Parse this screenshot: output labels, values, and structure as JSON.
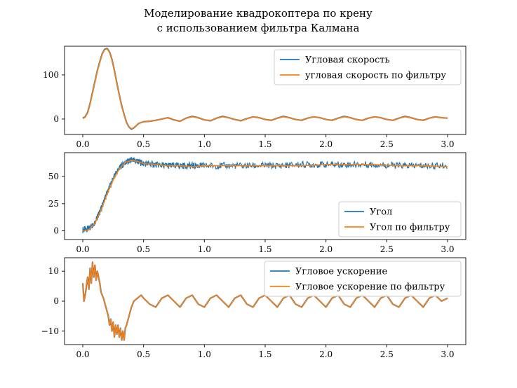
{
  "figure": {
    "title_line1": "Моделирование квадрокоптера по крену",
    "title_line2": "с использованием фильтра Калмана"
  },
  "colors": {
    "raw": "#1f77b4",
    "filtered": "#ff7f0e",
    "frame": "#000000"
  },
  "chart_data": [
    {
      "type": "line",
      "xlim": [
        -0.15,
        3.15
      ],
      "ylim": [
        -35,
        165
      ],
      "xticks": [
        0.0,
        0.5,
        1.0,
        1.5,
        2.0,
        2.5,
        3.0
      ],
      "xtick_labels": [
        "0.0",
        "0.5",
        "1.0",
        "1.5",
        "2.0",
        "2.5",
        "3.0"
      ],
      "yticks": [
        0,
        100
      ],
      "ytick_labels": [
        "0",
        "100"
      ],
      "legend_position": "upper-right",
      "series": [
        {
          "name": "Угловая скорость",
          "role": "raw",
          "x": [
            0.0,
            0.02,
            0.04,
            0.06,
            0.08,
            0.1,
            0.12,
            0.14,
            0.16,
            0.18,
            0.2,
            0.22,
            0.24,
            0.26,
            0.28,
            0.3,
            0.32,
            0.34,
            0.36,
            0.38,
            0.4,
            0.42,
            0.44,
            0.46,
            0.48,
            0.5,
            0.55,
            0.6,
            0.65,
            0.7,
            0.75,
            0.8,
            0.85,
            0.9,
            0.95,
            1.0,
            1.05,
            1.1,
            1.15,
            1.2,
            1.25,
            1.3,
            1.35,
            1.4,
            1.45,
            1.5,
            1.55,
            1.6,
            1.65,
            1.7,
            1.75,
            1.8,
            1.85,
            1.9,
            1.95,
            2.0,
            2.05,
            2.1,
            2.15,
            2.2,
            2.25,
            2.3,
            2.35,
            2.4,
            2.45,
            2.5,
            2.55,
            2.6,
            2.65,
            2.7,
            2.75,
            2.8,
            2.85,
            2.9,
            2.95,
            3.0
          ],
          "y": [
            2,
            5,
            15,
            35,
            60,
            85,
            110,
            130,
            148,
            158,
            160,
            152,
            135,
            110,
            82,
            55,
            30,
            10,
            -8,
            -18,
            -23,
            -20,
            -15,
            -10,
            -8,
            -6,
            -5,
            -3,
            0,
            3,
            -2,
            -5,
            2,
            6,
            3,
            -2,
            -4,
            2,
            6,
            3,
            -1,
            -4,
            1,
            5,
            3,
            -1,
            -3,
            2,
            6,
            3,
            -1,
            -3,
            2,
            5,
            3,
            -1,
            -3,
            2,
            6,
            3,
            -1,
            -3,
            2,
            5,
            3,
            -1,
            -3,
            2,
            6,
            3,
            -1,
            -3,
            2,
            5,
            3,
            2
          ]
        },
        {
          "name": "угловая скорость по фильтру",
          "role": "filtered",
          "x": [
            0.0,
            0.02,
            0.04,
            0.06,
            0.08,
            0.1,
            0.12,
            0.14,
            0.16,
            0.18,
            0.2,
            0.22,
            0.24,
            0.26,
            0.28,
            0.3,
            0.32,
            0.34,
            0.36,
            0.38,
            0.4,
            0.42,
            0.44,
            0.46,
            0.48,
            0.5,
            0.55,
            0.6,
            0.65,
            0.7,
            0.75,
            0.8,
            0.85,
            0.9,
            0.95,
            1.0,
            1.05,
            1.1,
            1.15,
            1.2,
            1.25,
            1.3,
            1.35,
            1.4,
            1.45,
            1.5,
            1.55,
            1.6,
            1.65,
            1.7,
            1.75,
            1.8,
            1.85,
            1.9,
            1.95,
            2.0,
            2.05,
            2.1,
            2.15,
            2.2,
            2.25,
            2.3,
            2.35,
            2.4,
            2.45,
            2.5,
            2.55,
            2.6,
            2.65,
            2.7,
            2.75,
            2.8,
            2.85,
            2.9,
            2.95,
            3.0
          ],
          "y": [
            1,
            4,
            14,
            34,
            59,
            84,
            109,
            129,
            147,
            157,
            159,
            151,
            134,
            109,
            81,
            54,
            29,
            9,
            -8,
            -18,
            -22,
            -20,
            -15,
            -10,
            -8,
            -6,
            -5,
            -3,
            0,
            3,
            -2,
            -5,
            2,
            5,
            3,
            -2,
            -4,
            2,
            5,
            3,
            -1,
            -4,
            1,
            5,
            3,
            -1,
            -3,
            2,
            5,
            3,
            -1,
            -3,
            2,
            5,
            3,
            -1,
            -3,
            2,
            5,
            3,
            -1,
            -3,
            2,
            5,
            3,
            -1,
            -3,
            2,
            5,
            3,
            -1,
            -3,
            2,
            5,
            3,
            2
          ]
        }
      ]
    },
    {
      "type": "line",
      "xlim": [
        -0.15,
        3.15
      ],
      "ylim": [
        -8,
        72
      ],
      "xticks": [
        0.0,
        0.5,
        1.0,
        1.5,
        2.0,
        2.5,
        3.0
      ],
      "xtick_labels": [
        "0.0",
        "0.5",
        "1.0",
        "1.5",
        "2.0",
        "2.5",
        "3.0"
      ],
      "yticks": [
        0,
        25,
        50
      ],
      "ytick_labels": [
        "0",
        "25",
        "50"
      ],
      "legend_position": "lower-right",
      "series": [
        {
          "name": "Угол",
          "role": "raw",
          "band": 3,
          "x": [
            0.0,
            0.05,
            0.1,
            0.15,
            0.2,
            0.25,
            0.3,
            0.35,
            0.4,
            0.45,
            0.5,
            0.6,
            0.7,
            0.8,
            0.9,
            1.0,
            1.2,
            1.4,
            1.6,
            1.8,
            2.0,
            2.2,
            2.4,
            2.6,
            2.8,
            3.0
          ],
          "y": [
            1,
            2,
            8,
            20,
            35,
            48,
            58,
            63,
            65,
            64,
            62,
            61,
            60,
            60,
            60,
            60,
            60,
            60,
            60,
            61,
            61,
            61,
            61,
            60,
            60,
            60
          ]
        },
        {
          "name": "Угол по фильтру",
          "role": "filtered",
          "x": [
            0.0,
            0.05,
            0.1,
            0.15,
            0.2,
            0.25,
            0.3,
            0.35,
            0.4,
            0.45,
            0.5,
            0.6,
            0.7,
            0.8,
            0.9,
            1.0,
            1.2,
            1.4,
            1.6,
            1.8,
            2.0,
            2.2,
            2.4,
            2.6,
            2.8,
            3.0
          ],
          "y": [
            0,
            1,
            7,
            19,
            34,
            47,
            57,
            63,
            65,
            64,
            62,
            61,
            60,
            60,
            59,
            60,
            60,
            60,
            60,
            60,
            61,
            61,
            61,
            60,
            60,
            59
          ]
        }
      ]
    },
    {
      "type": "line",
      "xlim": [
        -0.15,
        3.15
      ],
      "ylim": [
        -14.5,
        14.5
      ],
      "xticks": [
        0.0,
        0.5,
        1.0,
        1.5,
        2.0,
        2.5,
        3.0
      ],
      "xtick_labels": [
        "0.0",
        "0.5",
        "1.0",
        "1.5",
        "2.0",
        "2.5",
        "3.0"
      ],
      "yticks": [
        -10,
        0,
        10
      ],
      "ytick_labels": [
        "−10",
        "0",
        "10"
      ],
      "legend_position": "upper-right",
      "series": [
        {
          "name": "Угловое ускорение",
          "role": "raw",
          "x": [
            0.0,
            0.01,
            0.02,
            0.04,
            0.05,
            0.06,
            0.07,
            0.08,
            0.09,
            0.1,
            0.11,
            0.12,
            0.13,
            0.14,
            0.15,
            0.17,
            0.19,
            0.21,
            0.22,
            0.23,
            0.24,
            0.25,
            0.26,
            0.27,
            0.28,
            0.29,
            0.3,
            0.31,
            0.32,
            0.33,
            0.34,
            0.35,
            0.36,
            0.38,
            0.4,
            0.42,
            0.45,
            0.48,
            0.5,
            0.55,
            0.6,
            0.65,
            0.7,
            0.75,
            0.8,
            0.85,
            0.9,
            0.95,
            1.0,
            1.05,
            1.1,
            1.15,
            1.2,
            1.25,
            1.3,
            1.35,
            1.4,
            1.45,
            1.5,
            1.55,
            1.6,
            1.65,
            1.7,
            1.75,
            1.8,
            1.85,
            1.9,
            1.95,
            2.0,
            2.05,
            2.1,
            2.15,
            2.2,
            2.25,
            2.3,
            2.35,
            2.4,
            2.45,
            2.5,
            2.55,
            2.6,
            2.65,
            2.7,
            2.75,
            2.8,
            2.85,
            2.9,
            2.95,
            3.0
          ],
          "y": [
            6,
            0,
            2,
            8,
            4,
            11,
            6,
            13,
            8,
            12,
            7,
            10,
            8,
            6,
            3,
            1,
            -2,
            -5,
            -8,
            -6,
            -10,
            -7,
            -12,
            -8,
            -11,
            -8,
            -12,
            -9,
            -13,
            -10,
            -13,
            -9,
            -8,
            -5,
            -2,
            0,
            1,
            2,
            1,
            -1,
            -2,
            1,
            2,
            0,
            -2,
            1,
            2,
            -1,
            -2,
            1,
            2,
            0,
            -2,
            1,
            2,
            -1,
            -2,
            1,
            2,
            0,
            -2,
            1,
            2,
            -1,
            -2,
            1,
            2,
            0,
            -2,
            1,
            2,
            -1,
            -2,
            1,
            2,
            0,
            -2,
            1,
            2,
            -1,
            -2,
            1,
            2,
            0,
            -2,
            1,
            2,
            0,
            1
          ]
        },
        {
          "name": "Угловое ускорение по фильтру",
          "role": "filtered",
          "x": [
            0.0,
            0.01,
            0.02,
            0.04,
            0.05,
            0.06,
            0.07,
            0.08,
            0.09,
            0.1,
            0.11,
            0.12,
            0.13,
            0.14,
            0.15,
            0.17,
            0.19,
            0.21,
            0.22,
            0.23,
            0.24,
            0.25,
            0.26,
            0.27,
            0.28,
            0.29,
            0.3,
            0.31,
            0.32,
            0.33,
            0.34,
            0.35,
            0.36,
            0.38,
            0.4,
            0.42,
            0.45,
            0.48,
            0.5,
            0.55,
            0.6,
            0.65,
            0.7,
            0.75,
            0.8,
            0.85,
            0.9,
            0.95,
            1.0,
            1.05,
            1.1,
            1.15,
            1.2,
            1.25,
            1.3,
            1.35,
            1.4,
            1.45,
            1.5,
            1.55,
            1.6,
            1.65,
            1.7,
            1.75,
            1.8,
            1.85,
            1.9,
            1.95,
            2.0,
            2.05,
            2.1,
            2.15,
            2.2,
            2.25,
            2.3,
            2.35,
            2.4,
            2.45,
            2.5,
            2.55,
            2.6,
            2.65,
            2.7,
            2.75,
            2.8,
            2.85,
            2.9,
            2.95,
            3.0
          ],
          "y": [
            6,
            0,
            2,
            8,
            4,
            11,
            6,
            13,
            8,
            12,
            7,
            10,
            8,
            6,
            3,
            1,
            -2,
            -5,
            -8,
            -6,
            -10,
            -7,
            -12,
            -8,
            -11,
            -8,
            -12,
            -9,
            -13,
            -10,
            -13,
            -9,
            -8,
            -5,
            -2,
            0,
            1,
            2,
            1,
            -1,
            -2,
            1,
            2,
            0,
            -2,
            1,
            2,
            -1,
            -2,
            1,
            2,
            0,
            -2,
            1,
            2,
            -1,
            -2,
            1,
            2,
            0,
            -2,
            1,
            2,
            -1,
            -2,
            1,
            2,
            0,
            -2,
            1,
            2,
            -1,
            -2,
            1,
            2,
            0,
            -2,
            1,
            2,
            -1,
            -2,
            1,
            2,
            0,
            -2,
            1,
            2,
            0,
            1
          ]
        }
      ]
    }
  ]
}
